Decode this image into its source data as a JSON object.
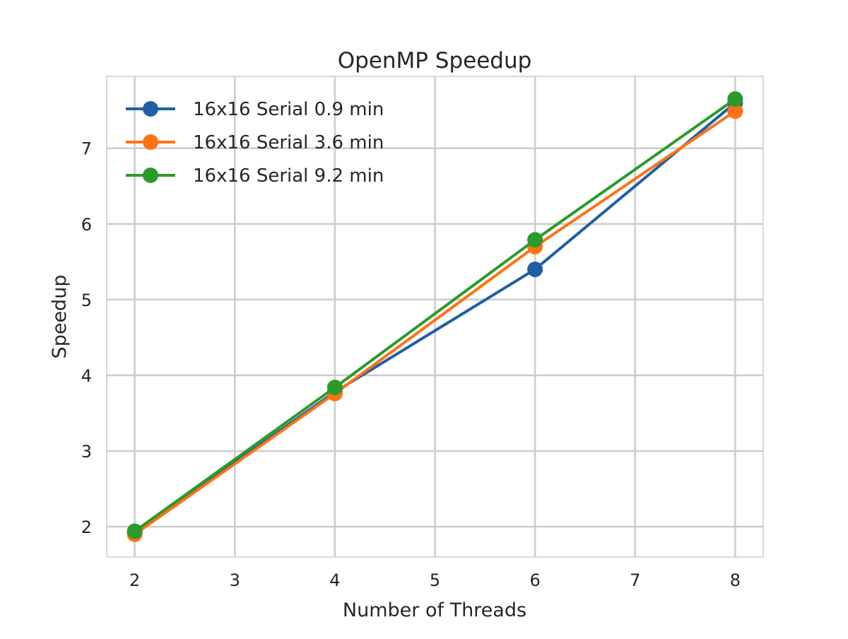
{
  "chart_data": {
    "type": "line",
    "title": "OpenMP Speedup",
    "xlabel": "Number of Threads",
    "ylabel": "Speedup",
    "xlim": [
      1.72,
      8.28
    ],
    "ylim": [
      1.6,
      7.95
    ],
    "xticks": [
      2,
      3,
      4,
      5,
      6,
      7,
      8
    ],
    "yticks": [
      2,
      3,
      4,
      5,
      6,
      7
    ],
    "x": [
      2,
      4,
      6,
      8
    ],
    "grid": true,
    "legend_position": "top-left",
    "series": [
      {
        "name": "16x16 Serial 0.9 min",
        "color": "#1f5fa6",
        "values": [
          1.92,
          3.78,
          5.4,
          7.6
        ]
      },
      {
        "name": "16x16 Serial 3.6 min",
        "color": "#ff7214",
        "values": [
          1.9,
          3.76,
          5.7,
          7.49
        ]
      },
      {
        "name": "16x16 Serial 9.2 min",
        "color": "#2a9b2a",
        "values": [
          1.94,
          3.84,
          5.79,
          7.65
        ]
      }
    ]
  }
}
